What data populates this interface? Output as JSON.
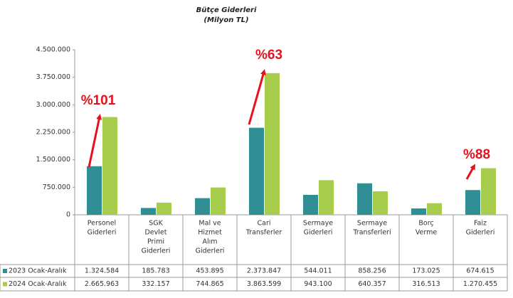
{
  "chart_data": {
    "type": "bar",
    "title": "Bütçe Giderleri",
    "subtitle": "(Milyon TL)",
    "categories": [
      [
        "Personel",
        "Giderleri"
      ],
      [
        "SGK",
        "Devlet",
        "Primi",
        "Giderleri"
      ],
      [
        "Mal ve",
        "Hizmet",
        "Alım",
        "Giderleri"
      ],
      [
        "Cari",
        "Transferler"
      ],
      [
        "Sermaye",
        "Giderleri"
      ],
      [
        "Sermaye",
        "Transferleri"
      ],
      [
        "Borç",
        "Verme"
      ],
      [
        "Faiz",
        "Giderleri"
      ]
    ],
    "series": [
      {
        "name": "2023 Ocak-Aralık",
        "color": "#2f8f94",
        "values": [
          1324584,
          185783,
          453895,
          2373847,
          544011,
          858256,
          173025,
          674615
        ],
        "value_labels": [
          "1.324.584",
          "185.783",
          "453.895",
          "2.373.847",
          "544.011",
          "858.256",
          "173.025",
          "674.615"
        ]
      },
      {
        "name": "2024 Ocak-Aralık",
        "color": "#a8cc4c",
        "values": [
          2665963,
          332157,
          744865,
          3863599,
          943100,
          640357,
          316513,
          1270455
        ],
        "value_labels": [
          "2.665.963",
          "332.157",
          "744.865",
          "3.863.599",
          "943.100",
          "640.357",
          "316.513",
          "1.270.455"
        ]
      }
    ],
    "ylim": [
      0,
      4500000
    ],
    "yticks": [
      0,
      {
        "value": 750000,
        "label": "750.000"
      },
      {
        "value": 1500000,
        "label": "1.500.000"
      },
      {
        "value": 2250000,
        "label": "2.250.000"
      },
      {
        "value": 3000000,
        "label": "3.000.000"
      },
      {
        "value": 3750000,
        "label": "3.750.000"
      },
      {
        "value": 4500000,
        "label": "4.500.000"
      }
    ],
    "grid": false,
    "annotations": [
      {
        "text": "%101",
        "color": "#e8101a"
      },
      {
        "text": "%63",
        "color": "#e8101a"
      },
      {
        "text": "%88",
        "color": "#e8101a"
      }
    ]
  }
}
